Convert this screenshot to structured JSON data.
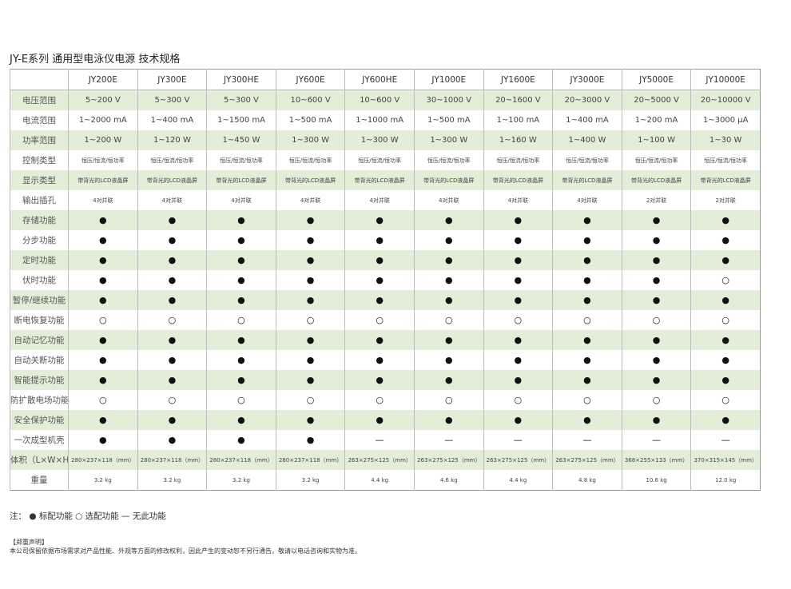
{
  "title": "JY-E系列 通用型电泳仪电源 技术规格",
  "models": [
    "JY200E",
    "JY300E",
    "JY300HE",
    "JY600E",
    "JY600HE",
    "JY1000E",
    "JY1600E",
    "JY3000E",
    "JY5000E",
    "JY10000E"
  ],
  "rows": [
    {
      "label": "电压范围",
      "style": "md",
      "cells": [
        "5~200 V",
        "5~300 V",
        "5~300 V",
        "10~600 V",
        "10~600 V",
        "30~1000 V",
        "20~1600 V",
        "20~3000 V",
        "20~5000 V",
        "20~10000 V"
      ]
    },
    {
      "label": "电流范围",
      "style": "md",
      "cells": [
        "1~2000 mA",
        "1~400 mA",
        "1~1500 mA",
        "1~500 mA",
        "1~1000 mA",
        "1~500 mA",
        "1~100 mA",
        "1~400 mA",
        "1~200 mA",
        "1~3000 µA"
      ]
    },
    {
      "label": "功率范围",
      "style": "md",
      "cells": [
        "1~200 W",
        "1~120 W",
        "1~450 W",
        "1~300 W",
        "1~300 W",
        "1~300 W",
        "1~160 W",
        "1~400 W",
        "1~100 W",
        "1~30 W"
      ]
    },
    {
      "label": "控制类型",
      "style": "sm",
      "cells": [
        "恒压/恒流/恒功率",
        "恒压/恒流/恒功率",
        "恒压/恒流/恒功率",
        "恒压/恒流/恒功率",
        "恒压/恒流/恒功率",
        "恒压/恒流/恒功率",
        "恒压/恒流/恒功率",
        "恒压/恒流/恒功率",
        "恒压/恒流/恒功率",
        "恒压/恒流/恒功率"
      ]
    },
    {
      "label": "显示类型",
      "style": "sm",
      "cells": [
        "带背光的LCD液晶屏",
        "带背光的LCD液晶屏",
        "带背光的LCD液晶屏",
        "带背光的LCD液晶屏",
        "带背光的LCD液晶屏",
        "带背光的LCD液晶屏",
        "带背光的LCD液晶屏",
        "带背光的LCD液晶屏",
        "带背光的LCD液晶屏",
        "带背光的LCD液晶屏"
      ]
    },
    {
      "label": "输出插孔",
      "style": "sm",
      "cells": [
        "4对并联",
        "4对并联",
        "4对并联",
        "4对并联",
        "4对并联",
        "4对并联",
        "4对并联",
        "4对并联",
        "2对并联",
        "2对并联"
      ]
    },
    {
      "label": "存储功能",
      "style": "sym",
      "cells": [
        "●",
        "●",
        "●",
        "●",
        "●",
        "●",
        "●",
        "●",
        "●",
        "●"
      ]
    },
    {
      "label": "分步功能",
      "style": "sym",
      "cells": [
        "●",
        "●",
        "●",
        "●",
        "●",
        "●",
        "●",
        "●",
        "●",
        "●"
      ]
    },
    {
      "label": "定时功能",
      "style": "sym",
      "cells": [
        "●",
        "●",
        "●",
        "●",
        "●",
        "●",
        "●",
        "●",
        "●",
        "●"
      ]
    },
    {
      "label": "伏时功能",
      "style": "sym",
      "cells": [
        "●",
        "●",
        "●",
        "●",
        "●",
        "●",
        "●",
        "●",
        "●",
        "○"
      ]
    },
    {
      "label": "暂停/继续功能",
      "style": "sym",
      "cells": [
        "●",
        "●",
        "●",
        "●",
        "●",
        "●",
        "●",
        "●",
        "●",
        "●"
      ]
    },
    {
      "label": "断电恢复功能",
      "style": "sym",
      "cells": [
        "○",
        "○",
        "○",
        "○",
        "○",
        "○",
        "○",
        "○",
        "○",
        "○"
      ]
    },
    {
      "label": "自动记忆功能",
      "style": "sym",
      "cells": [
        "●",
        "●",
        "●",
        "●",
        "●",
        "●",
        "●",
        "●",
        "●",
        "●"
      ]
    },
    {
      "label": "自动关断功能",
      "style": "sym",
      "cells": [
        "●",
        "●",
        "●",
        "●",
        "●",
        "●",
        "●",
        "●",
        "●",
        "●"
      ]
    },
    {
      "label": "智能提示功能",
      "style": "sym",
      "cells": [
        "●",
        "●",
        "●",
        "●",
        "●",
        "●",
        "●",
        "●",
        "●",
        "●"
      ]
    },
    {
      "label": "防扩散电场功能",
      "style": "sym",
      "cells": [
        "○",
        "○",
        "○",
        "○",
        "○",
        "○",
        "○",
        "○",
        "○",
        "○"
      ]
    },
    {
      "label": "安全保护功能",
      "style": "sym",
      "cells": [
        "●",
        "●",
        "●",
        "●",
        "●",
        "●",
        "●",
        "●",
        "●",
        "●"
      ]
    },
    {
      "label": "一次成型机壳",
      "style": "sym",
      "cells": [
        "●",
        "●",
        "●",
        "●",
        "—",
        "—",
        "—",
        "—",
        "—",
        "—"
      ]
    },
    {
      "label": "体积（L×W×H）",
      "style": "sm",
      "cells": [
        "280×237×118（mm）",
        "280×237×118（mm）",
        "280×237×118（mm）",
        "280×237×118（mm）",
        "263×275×125（mm）",
        "263×275×125（mm）",
        "263×275×125（mm）",
        "263×275×125（mm）",
        "368×255×133（mm）",
        "370×315×145（mm）"
      ]
    },
    {
      "label": "重量",
      "style": "sm",
      "cells": [
        "3.2 kg",
        "3.2 kg",
        "3.2 kg",
        "3.2 kg",
        "4.4 kg",
        "4.6 kg",
        "4.4 kg",
        "4.8 kg",
        "10.6 kg",
        "12.0 kg"
      ]
    }
  ],
  "note": "注：  ● 标配功能   ○ 选配功能   — 无此功能",
  "declaration_title": "【郑重声明】",
  "declaration": "本公司保留依据市场需求对产品性能、外观等方面的修改权利，因此产生的变动恕不另行通告，敬请以电话咨询和实物为准。",
  "colors": {
    "row_alt": "#e2eed8",
    "border": "#bdbdbd"
  }
}
